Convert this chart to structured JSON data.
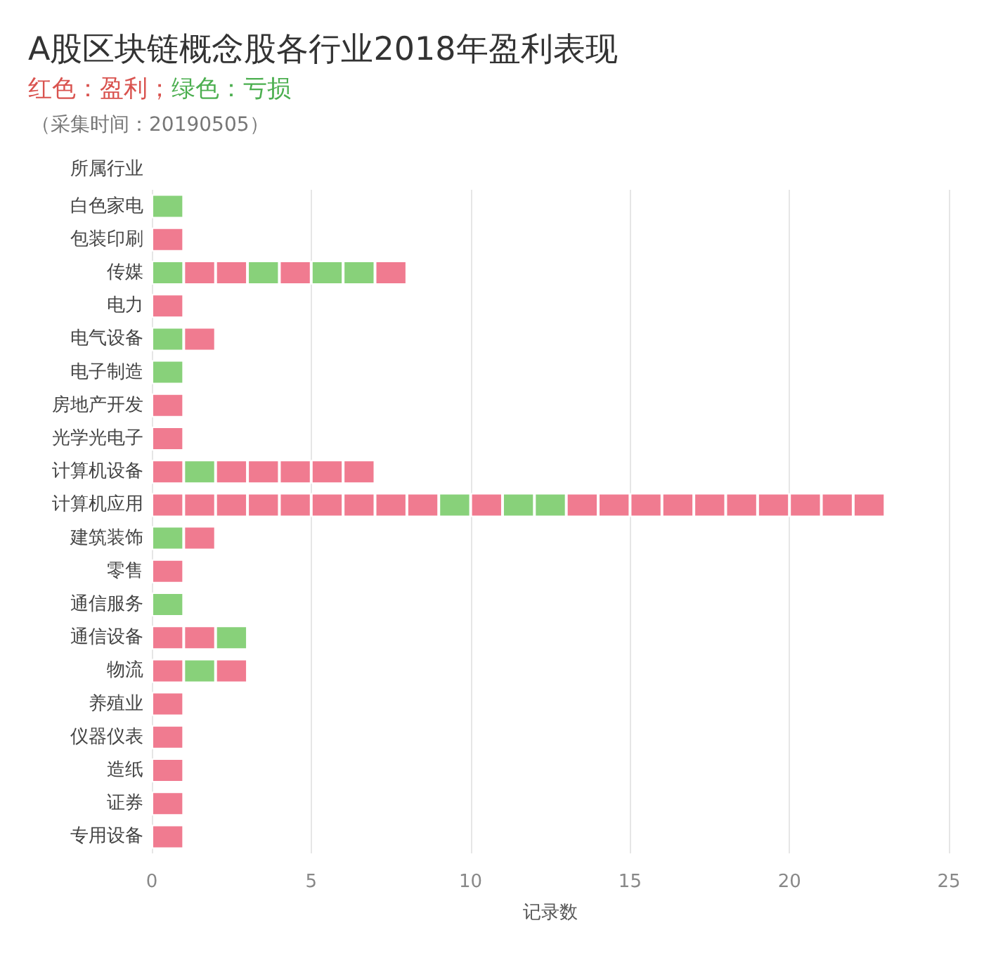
{
  "chart_data": {
    "type": "bar",
    "orientation": "horizontal",
    "stacked": true,
    "title": "A股区块链概念股各行业2018年盈利表现",
    "subtitle": "红色：盈利；绿色：亏损",
    "annotations": [
      "（采集时间：20190505）"
    ],
    "ylabel": "所属行业",
    "xlabel": "记录数",
    "categories": [
      "白色家电",
      "包装印刷",
      "传媒",
      "电力",
      "电气设备",
      "电子制造",
      "房地产开发",
      "光学光电子",
      "计算机设备",
      "计算机应用",
      "建筑装饰",
      "零售",
      "通信服务",
      "通信设备",
      "物流",
      "养殖业",
      "仪器仪表",
      "造纸",
      "证券",
      "专用设备"
    ],
    "xlim": [
      0,
      25
    ],
    "xticks": [
      0,
      5,
      10,
      15,
      20,
      25
    ],
    "grid": "x",
    "series": [
      {
        "values": [
          1,
          1,
          1,
          1,
          1,
          1,
          1,
          1,
          1,
          1,
          1,
          1,
          1,
          1,
          1,
          1,
          1,
          1,
          1,
          1
        ],
        "colors": [
          "#88d17a",
          "#f07b90",
          "#88d17a",
          "#f07b90",
          "#88d17a",
          "#88d17a",
          "#f07b90",
          "#f07b90",
          "#f07b90",
          "#f07b90",
          "#88d17a",
          "#f07b90",
          "#88d17a",
          "#f07b90",
          "#f07b90",
          "#f07b90",
          "#f07b90",
          "#f07b90",
          "#f07b90",
          "#f07b90"
        ]
      },
      {
        "values": [
          null,
          null,
          1,
          null,
          1,
          null,
          null,
          null,
          1,
          1,
          1,
          null,
          null,
          1,
          1,
          null,
          null,
          null,
          null,
          null
        ],
        "colors": [
          null,
          null,
          "#f07b90",
          null,
          "#f07b90",
          null,
          null,
          null,
          "#88d17a",
          "#f07b90",
          "#f07b90",
          null,
          null,
          "#f07b90",
          "#88d17a",
          null,
          null,
          null,
          null,
          null
        ]
      },
      {
        "values": [
          null,
          null,
          1,
          null,
          null,
          null,
          null,
          null,
          1,
          1,
          null,
          null,
          null,
          1,
          1,
          null,
          null,
          null,
          null,
          null
        ],
        "colors": [
          null,
          null,
          "#f07b90",
          null,
          null,
          null,
          null,
          null,
          "#f07b90",
          "#f07b90",
          null,
          null,
          null,
          "#88d17a",
          "#f07b90",
          null,
          null,
          null,
          null,
          null
        ]
      },
      {
        "values": [
          null,
          null,
          1,
          null,
          null,
          null,
          null,
          null,
          1,
          1,
          null,
          null,
          null,
          null,
          null,
          null,
          null,
          null,
          null,
          null
        ],
        "colors": [
          null,
          null,
          "#88d17a",
          null,
          null,
          null,
          null,
          null,
          "#f07b90",
          "#f07b90",
          null,
          null,
          null,
          null,
          null,
          null,
          null,
          null,
          null,
          null
        ]
      },
      {
        "values": [
          null,
          null,
          1,
          null,
          null,
          null,
          null,
          null,
          1,
          1,
          null,
          null,
          null,
          null,
          null,
          null,
          null,
          null,
          null,
          null
        ],
        "colors": [
          null,
          null,
          "#f07b90",
          null,
          null,
          null,
          null,
          null,
          "#f07b90",
          "#f07b90",
          null,
          null,
          null,
          null,
          null,
          null,
          null,
          null,
          null,
          null
        ]
      },
      {
        "values": [
          null,
          null,
          1,
          null,
          null,
          null,
          null,
          null,
          1,
          1,
          null,
          null,
          null,
          null,
          null,
          null,
          null,
          null,
          null,
          null
        ],
        "colors": [
          null,
          null,
          "#88d17a",
          null,
          null,
          null,
          null,
          null,
          "#f07b90",
          "#f07b90",
          null,
          null,
          null,
          null,
          null,
          null,
          null,
          null,
          null,
          null
        ]
      },
      {
        "values": [
          null,
          null,
          1,
          null,
          null,
          null,
          null,
          null,
          1,
          1,
          null,
          null,
          null,
          null,
          null,
          null,
          null,
          null,
          null,
          null
        ],
        "colors": [
          null,
          null,
          "#88d17a",
          null,
          null,
          null,
          null,
          null,
          "#f07b90",
          "#f07b90",
          null,
          null,
          null,
          null,
          null,
          null,
          null,
          null,
          null,
          null
        ]
      },
      {
        "values": [
          null,
          null,
          1,
          null,
          null,
          null,
          null,
          null,
          null,
          1,
          null,
          null,
          null,
          null,
          null,
          null,
          null,
          null,
          null,
          null
        ],
        "colors": [
          null,
          null,
          "#f07b90",
          null,
          null,
          null,
          null,
          null,
          null,
          "#f07b90",
          null,
          null,
          null,
          null,
          null,
          null,
          null,
          null,
          null,
          null
        ]
      },
      {
        "values": [
          null,
          null,
          null,
          null,
          null,
          null,
          null,
          null,
          null,
          1,
          null,
          null,
          null,
          null,
          null,
          null,
          null,
          null,
          null,
          null
        ],
        "colors": [
          null,
          null,
          null,
          null,
          null,
          null,
          null,
          null,
          null,
          "#f07b90",
          null,
          null,
          null,
          null,
          null,
          null,
          null,
          null,
          null,
          null
        ]
      },
      {
        "values": [
          null,
          null,
          null,
          null,
          null,
          null,
          null,
          null,
          null,
          1,
          null,
          null,
          null,
          null,
          null,
          null,
          null,
          null,
          null,
          null
        ],
        "colors": [
          null,
          null,
          null,
          null,
          null,
          null,
          null,
          null,
          null,
          "#88d17a",
          null,
          null,
          null,
          null,
          null,
          null,
          null,
          null,
          null,
          null
        ]
      },
      {
        "values": [
          null,
          null,
          null,
          null,
          null,
          null,
          null,
          null,
          null,
          1,
          null,
          null,
          null,
          null,
          null,
          null,
          null,
          null,
          null,
          null
        ],
        "colors": [
          null,
          null,
          null,
          null,
          null,
          null,
          null,
          null,
          null,
          "#f07b90",
          null,
          null,
          null,
          null,
          null,
          null,
          null,
          null,
          null,
          null
        ]
      },
      {
        "values": [
          null,
          null,
          null,
          null,
          null,
          null,
          null,
          null,
          null,
          1,
          null,
          null,
          null,
          null,
          null,
          null,
          null,
          null,
          null,
          null
        ],
        "colors": [
          null,
          null,
          null,
          null,
          null,
          null,
          null,
          null,
          null,
          "#88d17a",
          null,
          null,
          null,
          null,
          null,
          null,
          null,
          null,
          null,
          null
        ]
      },
      {
        "values": [
          null,
          null,
          null,
          null,
          null,
          null,
          null,
          null,
          null,
          1,
          null,
          null,
          null,
          null,
          null,
          null,
          null,
          null,
          null,
          null
        ],
        "colors": [
          null,
          null,
          null,
          null,
          null,
          null,
          null,
          null,
          null,
          "#88d17a",
          null,
          null,
          null,
          null,
          null,
          null,
          null,
          null,
          null,
          null
        ]
      },
      {
        "values": [
          null,
          null,
          null,
          null,
          null,
          null,
          null,
          null,
          null,
          1,
          null,
          null,
          null,
          null,
          null,
          null,
          null,
          null,
          null,
          null
        ],
        "colors": [
          null,
          null,
          null,
          null,
          null,
          null,
          null,
          null,
          null,
          "#f07b90",
          null,
          null,
          null,
          null,
          null,
          null,
          null,
          null,
          null,
          null
        ]
      },
      {
        "values": [
          null,
          null,
          null,
          null,
          null,
          null,
          null,
          null,
          null,
          1,
          null,
          null,
          null,
          null,
          null,
          null,
          null,
          null,
          null,
          null
        ],
        "colors": [
          null,
          null,
          null,
          null,
          null,
          null,
          null,
          null,
          null,
          "#f07b90",
          null,
          null,
          null,
          null,
          null,
          null,
          null,
          null,
          null,
          null
        ]
      },
      {
        "values": [
          null,
          null,
          null,
          null,
          null,
          null,
          null,
          null,
          null,
          1,
          null,
          null,
          null,
          null,
          null,
          null,
          null,
          null,
          null,
          null
        ],
        "colors": [
          null,
          null,
          null,
          null,
          null,
          null,
          null,
          null,
          null,
          "#f07b90",
          null,
          null,
          null,
          null,
          null,
          null,
          null,
          null,
          null,
          null
        ]
      },
      {
        "values": [
          null,
          null,
          null,
          null,
          null,
          null,
          null,
          null,
          null,
          1,
          null,
          null,
          null,
          null,
          null,
          null,
          null,
          null,
          null,
          null
        ],
        "colors": [
          null,
          null,
          null,
          null,
          null,
          null,
          null,
          null,
          null,
          "#f07b90",
          null,
          null,
          null,
          null,
          null,
          null,
          null,
          null,
          null,
          null
        ]
      },
      {
        "values": [
          null,
          null,
          null,
          null,
          null,
          null,
          null,
          null,
          null,
          1,
          null,
          null,
          null,
          null,
          null,
          null,
          null,
          null,
          null,
          null
        ],
        "colors": [
          null,
          null,
          null,
          null,
          null,
          null,
          null,
          null,
          null,
          "#f07b90",
          null,
          null,
          null,
          null,
          null,
          null,
          null,
          null,
          null,
          null
        ]
      },
      {
        "values": [
          null,
          null,
          null,
          null,
          null,
          null,
          null,
          null,
          null,
          1,
          null,
          null,
          null,
          null,
          null,
          null,
          null,
          null,
          null,
          null
        ],
        "colors": [
          null,
          null,
          null,
          null,
          null,
          null,
          null,
          null,
          null,
          "#f07b90",
          null,
          null,
          null,
          null,
          null,
          null,
          null,
          null,
          null,
          null
        ]
      },
      {
        "values": [
          null,
          null,
          null,
          null,
          null,
          null,
          null,
          null,
          null,
          1,
          null,
          null,
          null,
          null,
          null,
          null,
          null,
          null,
          null,
          null
        ],
        "colors": [
          null,
          null,
          null,
          null,
          null,
          null,
          null,
          null,
          null,
          "#f07b90",
          null,
          null,
          null,
          null,
          null,
          null,
          null,
          null,
          null,
          null
        ]
      },
      {
        "values": [
          null,
          null,
          null,
          null,
          null,
          null,
          null,
          null,
          null,
          1,
          null,
          null,
          null,
          null,
          null,
          null,
          null,
          null,
          null,
          null
        ],
        "colors": [
          null,
          null,
          null,
          null,
          null,
          null,
          null,
          null,
          null,
          "#f07b90",
          null,
          null,
          null,
          null,
          null,
          null,
          null,
          null,
          null,
          null
        ]
      },
      {
        "values": [
          null,
          null,
          null,
          null,
          null,
          null,
          null,
          null,
          null,
          1,
          null,
          null,
          null,
          null,
          null,
          null,
          null,
          null,
          null,
          null
        ],
        "colors": [
          null,
          null,
          null,
          null,
          null,
          null,
          null,
          null,
          null,
          "#f07b90",
          null,
          null,
          null,
          null,
          null,
          null,
          null,
          null,
          null,
          null
        ]
      },
      {
        "values": [
          null,
          null,
          null,
          null,
          null,
          null,
          null,
          null,
          null,
          1,
          null,
          null,
          null,
          null,
          null,
          null,
          null,
          null,
          null,
          null
        ],
        "colors": [
          null,
          null,
          null,
          null,
          null,
          null,
          null,
          null,
          null,
          "#f07b90",
          null,
          null,
          null,
          null,
          null,
          null,
          null,
          null,
          null,
          null
        ]
      }
    ]
  }
}
